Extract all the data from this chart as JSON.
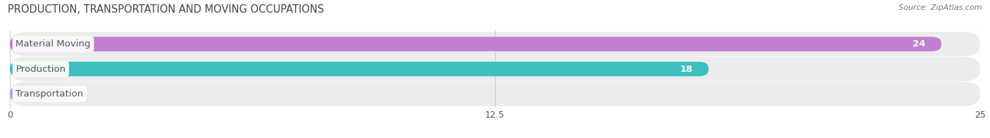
{
  "title": "PRODUCTION, TRANSPORTATION AND MOVING OCCUPATIONS",
  "source": "Source: ZipAtlas.com",
  "categories": [
    "Material Moving",
    "Production",
    "Transportation"
  ],
  "values": [
    24,
    18,
    0
  ],
  "bar_colors": [
    "#c17fcf",
    "#3dbfbf",
    "#a0a8d8"
  ],
  "xlim": [
    0,
    25
  ],
  "xticks": [
    0,
    12.5,
    25
  ],
  "xtick_labels": [
    "0",
    "12.5",
    "25"
  ],
  "bar_height": 0.58,
  "background_color": "#f7f7f7",
  "row_bg_color": "#ececec",
  "label_fontsize": 9.5,
  "value_fontsize": 9.5,
  "title_fontsize": 10.5
}
